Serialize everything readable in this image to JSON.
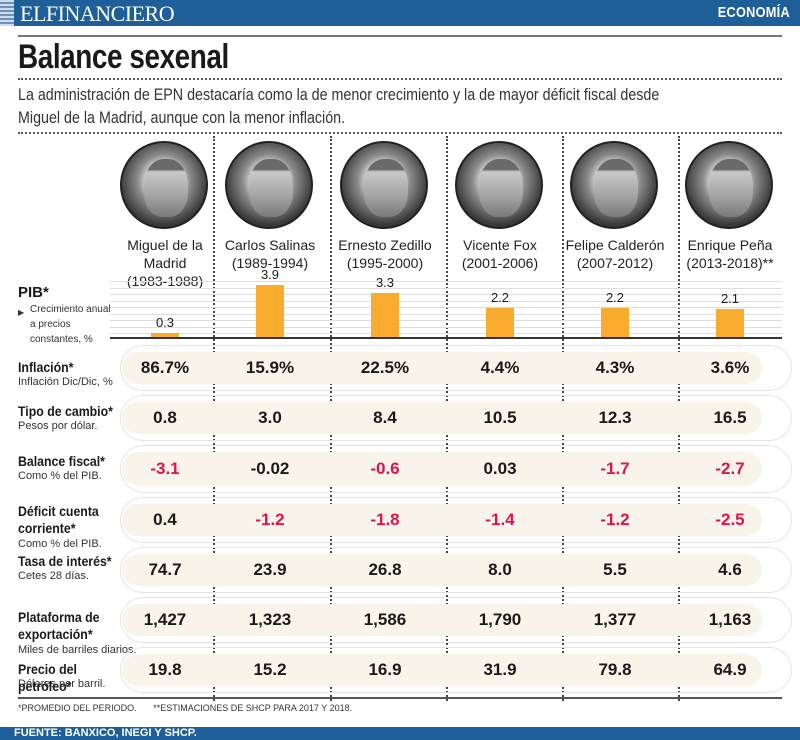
{
  "header": {
    "brand": "ELFINANCIERO",
    "section": "ECONOMÍA"
  },
  "title": "Balance sexenal",
  "subtitle": "La administración de EPN destacaría como la de menor crecimiento y la de mayor déficit fiscal desde Miguel de la Madrid, aunque con la menor inflación.",
  "presidents": [
    {
      "name": "Miguel de la Madrid",
      "line1": "Miguel de la",
      "line2": "Madrid",
      "line3": "(1983-1988)"
    },
    {
      "name": "Carlos Salinas",
      "line1": "Carlos Salinas",
      "line2": "(1989-1994)",
      "line3": ""
    },
    {
      "name": "Ernesto Zedillo",
      "line1": "Ernesto Zedillo",
      "line2": "(1995-2000)",
      "line3": ""
    },
    {
      "name": "Vicente Fox",
      "line1": "Vicente Fox",
      "line2": "(2001-2006)",
      "line3": ""
    },
    {
      "name": "Felipe Calderón",
      "line1": "Felipe Calderón",
      "line2": "(2007-2012)",
      "line3": ""
    },
    {
      "name": "Enrique Peña",
      "line1": "Enrique Peña",
      "line2": "(2013-2018)**",
      "line3": ""
    }
  ],
  "pib": {
    "label": "PIB*",
    "sub": "Crecimiento anual a precios constantes, %"
  },
  "chart_data": {
    "type": "bar",
    "title": "PIB*",
    "ylabel": "Crecimiento anual a precios constantes, %",
    "categories": [
      "Miguel de la Madrid (1983-1988)",
      "Carlos Salinas (1989-1994)",
      "Ernesto Zedillo (1995-2000)",
      "Vicente Fox (2001-2006)",
      "Felipe Calderón (2007-2012)",
      "Enrique Peña (2013-2018)**"
    ],
    "values": [
      0.3,
      3.9,
      3.3,
      2.2,
      2.2,
      2.1
    ],
    "labels": [
      "0.3",
      "3.9",
      "3.3",
      "2.2",
      "2.2",
      "2.1"
    ],
    "ylim": [
      0,
      4.2
    ],
    "grid": true,
    "bar_color": "#f9ab2e"
  },
  "rows": [
    {
      "label": "Inflación*",
      "sub": "Inflación Dic/Dic, %",
      "values": [
        "86.7%",
        "15.9%",
        "22.5%",
        "4.4%",
        "4.3%",
        "3.6%"
      ],
      "negative": [
        false,
        false,
        false,
        false,
        false,
        false
      ]
    },
    {
      "label": "Tipo de cambio*",
      "sub": "Pesos por dólar.",
      "values": [
        "0.8",
        "3.0",
        "8.4",
        "10.5",
        "12.3",
        "16.5"
      ],
      "negative": [
        false,
        false,
        false,
        false,
        false,
        false
      ]
    },
    {
      "label": "Balance fiscal*",
      "sub": "Como % del PIB.",
      "values": [
        "-3.1",
        "-0.02",
        "-0.6",
        "0.03",
        "-1.7",
        "-2.7"
      ],
      "negative": [
        true,
        false,
        true,
        false,
        true,
        true
      ]
    },
    {
      "label": "Déficit cuenta corriente*",
      "sub": "Como % del PIB.",
      "values": [
        "0.4",
        "-1.2",
        "-1.8",
        "-1.4",
        "-1.2",
        "-2.5"
      ],
      "negative": [
        false,
        true,
        true,
        true,
        true,
        true
      ]
    },
    {
      "label": "Tasa de interés*",
      "sub": "Cetes 28 días.",
      "values": [
        "74.7",
        "23.9",
        "26.8",
        "8.0",
        "5.5",
        "4.6"
      ],
      "negative": [
        false,
        false,
        false,
        false,
        false,
        false
      ]
    },
    {
      "label": "Plataforma de exportación*",
      "sub": "Miles de barriles diarios.",
      "values": [
        "1,427",
        "1,323",
        "1,586",
        "1,790",
        "1,377",
        "1,163"
      ],
      "negative": [
        false,
        false,
        false,
        false,
        false,
        false
      ]
    },
    {
      "label": "Precio del petróleo*",
      "sub": "Dólares por barril.",
      "values": [
        "19.8",
        "15.2",
        "16.9",
        "31.9",
        "79.8",
        "64.9"
      ],
      "negative": [
        false,
        false,
        false,
        false,
        false,
        false
      ]
    }
  ],
  "colors": {
    "brand_blue": "#1f5f99",
    "negative_red": "#e0134f",
    "bar_orange": "#f9ab2e",
    "row_fill": "#f8f4ea"
  },
  "footnotes": [
    "*PROMEDIO DEL PERIODO.",
    "**ESTIMACIONES DE SHCP PARA 2017 Y 2018."
  ],
  "source": "FUENTE: BANXICO, INEGI Y SHCP."
}
